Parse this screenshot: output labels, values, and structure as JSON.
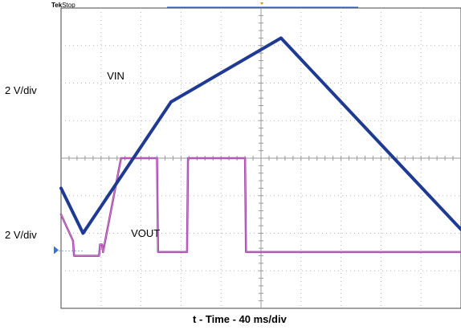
{
  "header": {
    "brand": "Tek",
    "status": "Stop"
  },
  "chart_data": {
    "type": "line",
    "title": "",
    "xlabel": "t - Time - 40 ms/div",
    "ylabels": [
      "2 V/div",
      "2 V/div"
    ],
    "x_unit": "ms",
    "x_range_ms": [
      0,
      400
    ],
    "y_unit": "div",
    "y_range_div": [
      -4,
      4
    ],
    "grid": true,
    "series": [
      {
        "name": "VIN",
        "color": "#1f3a93",
        "label_at": [
          46,
          2.1
        ],
        "x": [
          0,
          22,
          110,
          220,
          400
        ],
        "y": [
          -0.8,
          -2.0,
          1.5,
          3.2,
          -1.9
        ]
      },
      {
        "name": "VOUT",
        "color": "#9b3fa0",
        "label_at": [
          70,
          -2.1
        ],
        "x": [
          0,
          12,
          13,
          38,
          39,
          41,
          42,
          60,
          96,
          97,
          126,
          127,
          184,
          185,
          400
        ],
        "y": [
          -1.5,
          -2.2,
          -2.6,
          -2.6,
          -2.3,
          -2.3,
          -2.5,
          0.0,
          0.0,
          -2.5,
          -2.5,
          0.0,
          0.0,
          -2.5,
          -2.5
        ]
      }
    ]
  }
}
